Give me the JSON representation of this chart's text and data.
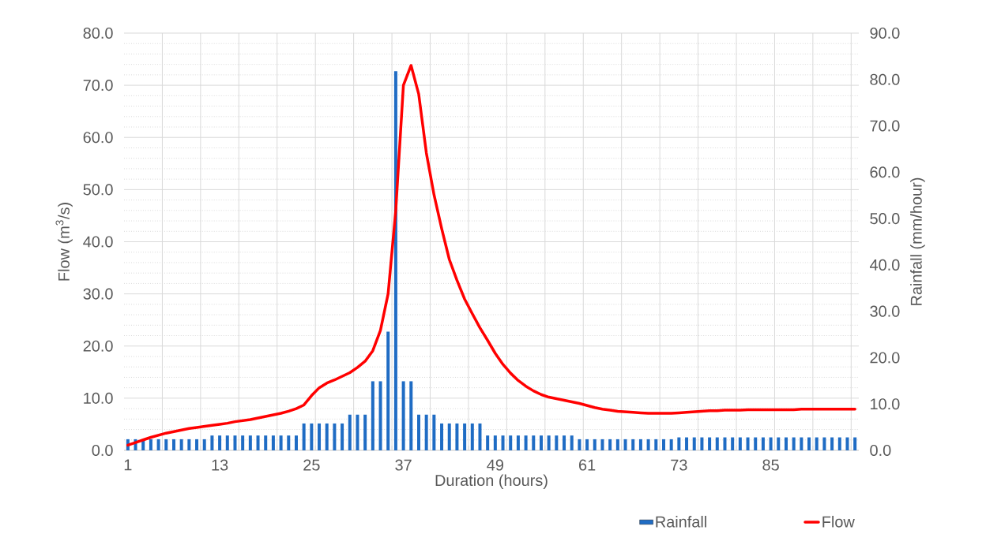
{
  "chart_data": {
    "type": "bar",
    "xlabel": "Duration (hours)",
    "ylabel": "Flow (m$^{3}$/s)",
    "y2label": "Rainfall (mm/hour)",
    "categories": [
      "1",
      null,
      null,
      null,
      null,
      null,
      null,
      null,
      null,
      null,
      null,
      null,
      "13",
      null,
      null,
      null,
      null,
      null,
      null,
      null,
      null,
      null,
      null,
      null,
      "25",
      null,
      null,
      null,
      null,
      null,
      null,
      null,
      null,
      null,
      null,
      null,
      "37",
      null,
      null,
      null,
      null,
      null,
      null,
      null,
      null,
      null,
      null,
      null,
      "49",
      null,
      null,
      null,
      null,
      null,
      null,
      null,
      null,
      null,
      null,
      null,
      "61",
      null,
      null,
      null,
      null,
      null,
      null,
      null,
      null,
      null,
      null,
      null,
      "73",
      null,
      null,
      null,
      null,
      null,
      null,
      null,
      null,
      null,
      null,
      null,
      "85",
      null,
      null,
      null,
      null,
      null,
      null,
      null,
      null,
      null,
      null,
      null
    ],
    "series": [
      {
        "name": "Rainfall",
        "axis": "y2",
        "color": "#1f6cc4",
        "values": [
          2.4,
          2.4,
          2.4,
          2.4,
          2.4,
          2.4,
          2.4,
          2.4,
          2.4,
          2.4,
          2.4,
          3.2,
          3.2,
          3.2,
          3.2,
          3.2,
          3.2,
          3.2,
          3.2,
          3.2,
          3.2,
          3.2,
          3.2,
          5.8,
          5.8,
          5.8,
          5.8,
          5.8,
          5.8,
          7.7,
          7.7,
          7.7,
          14.9,
          14.9,
          25.6,
          81.8,
          14.9,
          14.9,
          7.7,
          7.7,
          7.7,
          5.8,
          5.8,
          5.8,
          5.8,
          5.8,
          5.8,
          3.2,
          3.2,
          3.2,
          3.2,
          3.2,
          3.2,
          3.2,
          3.2,
          3.2,
          3.2,
          3.2,
          3.2,
          2.4,
          2.4,
          2.4,
          2.4,
          2.4,
          2.4,
          2.4,
          2.4,
          2.4,
          2.4,
          2.4,
          2.4,
          2.4,
          2.8,
          2.8,
          2.8,
          2.8,
          2.8,
          2.8,
          2.8,
          2.8,
          2.8,
          2.8,
          2.8,
          2.8,
          2.8,
          2.8,
          2.8,
          2.8,
          2.8,
          2.8,
          2.8,
          2.8,
          2.8,
          2.8,
          2.8,
          2.8
        ]
      },
      {
        "name": "Flow",
        "type": "line",
        "color": "#ff0000",
        "values": [
          1.0,
          1.5,
          2.0,
          2.5,
          2.9,
          3.3,
          3.6,
          3.9,
          4.2,
          4.4,
          4.6,
          4.8,
          5.0,
          5.2,
          5.5,
          5.7,
          5.9,
          6.2,
          6.5,
          6.8,
          7.1,
          7.5,
          8.0,
          8.7,
          10.5,
          12.0,
          12.9,
          13.5,
          14.2,
          14.9,
          15.9,
          17.1,
          19.1,
          23.0,
          30.0,
          46.0,
          70.0,
          73.8,
          68.3,
          57.0,
          49.0,
          42.5,
          36.6,
          32.6,
          29.0,
          26.2,
          23.5,
          21.1,
          18.6,
          16.5,
          14.8,
          13.4,
          12.3,
          11.4,
          10.7,
          10.2,
          9.9,
          9.6,
          9.3,
          9.0,
          8.6,
          8.2,
          7.9,
          7.7,
          7.5,
          7.4,
          7.3,
          7.2,
          7.1,
          7.1,
          7.1,
          7.1,
          7.2,
          7.3,
          7.4,
          7.5,
          7.6,
          7.6,
          7.7,
          7.7,
          7.7,
          7.8,
          7.8,
          7.8,
          7.8,
          7.8,
          7.8,
          7.8,
          7.9,
          7.9,
          7.9,
          7.9,
          7.9,
          7.9,
          7.9,
          7.9
        ]
      }
    ],
    "ylim": [
      0,
      80
    ],
    "yticks": [
      {
        "value": 0,
        "label": "0.0"
      },
      {
        "value": 10,
        "label": "10.0"
      },
      {
        "value": 20,
        "label": "20.0"
      },
      {
        "value": 30,
        "label": "30.0"
      },
      {
        "value": 40,
        "label": "40.0"
      },
      {
        "value": 50,
        "label": "50.0"
      },
      {
        "value": 60,
        "label": "60.0"
      },
      {
        "value": 70,
        "label": "70.0"
      },
      {
        "value": 80,
        "label": "80.0"
      }
    ],
    "y2lim": [
      0,
      90
    ],
    "y2ticks": [
      {
        "value": 0,
        "label": "0.0"
      },
      {
        "value": 10,
        "label": "10.0"
      },
      {
        "value": 20,
        "label": "20.0"
      },
      {
        "value": 30,
        "label": "30.0"
      },
      {
        "value": 40,
        "label": "40.0"
      },
      {
        "value": 50,
        "label": "50.0"
      },
      {
        "value": 60,
        "label": "60.0"
      },
      {
        "value": 70,
        "label": "70.0"
      },
      {
        "value": 80,
        "label": "80.0"
      },
      {
        "value": 90,
        "label": "90.0"
      }
    ],
    "grid": true,
    "legend": "bottom right"
  }
}
